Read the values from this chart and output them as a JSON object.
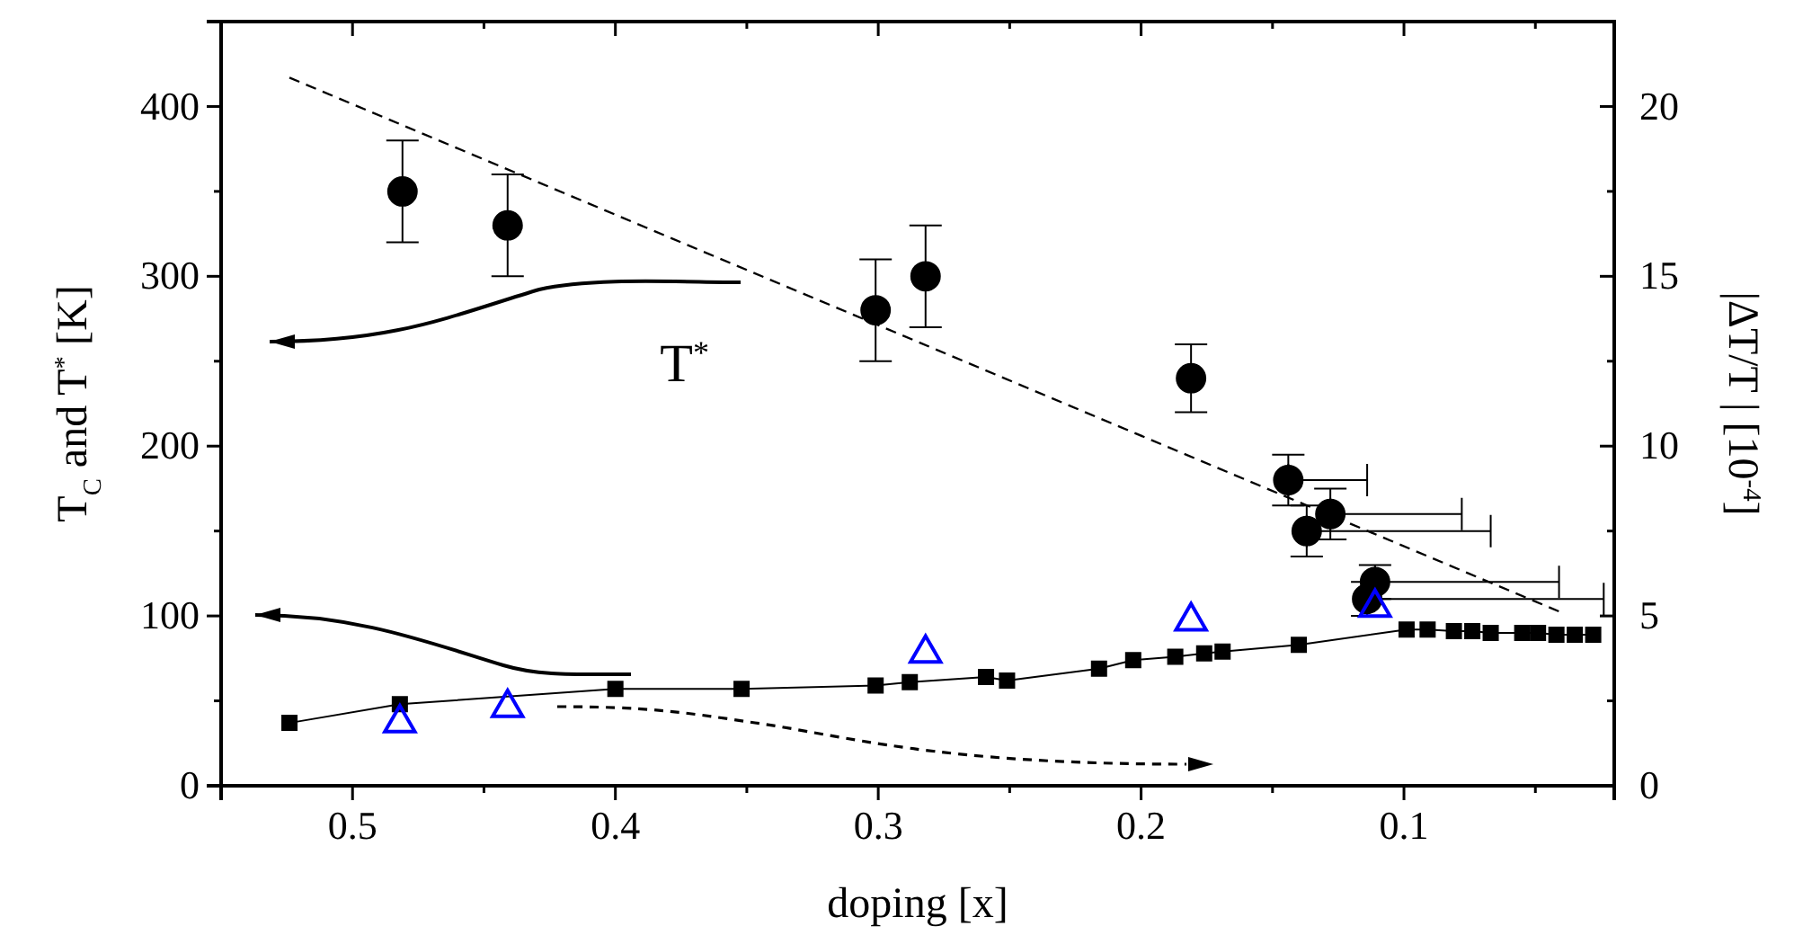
{
  "chart_data": {
    "type": "scatter",
    "xlabel": "doping [x]",
    "ylabel": "T$_{C}$ and T$^{*}$ [K]",
    "y2label": "|ΔT/T | [10$^{-4}$]",
    "xlim": [
      0.55,
      0.02
    ],
    "xticks": [
      0.5,
      {
        "value": 0.45,
        "label": null
      },
      0.4,
      {
        "value": 0.35,
        "label": null
      },
      0.3,
      {
        "value": 0.25,
        "label": null
      },
      0.2,
      {
        "value": 0.15,
        "label": null
      },
      0.1,
      {
        "value": 0.05,
        "label": null
      }
    ],
    "ylim": [
      0,
      450
    ],
    "yticks": [
      0,
      {
        "value": 50,
        "label": null
      },
      100,
      {
        "value": 150,
        "label": null
      },
      200,
      {
        "value": 250,
        "label": null
      },
      300,
      {
        "value": 350,
        "label": null
      },
      400
    ],
    "y2lim": [
      0,
      22.5
    ],
    "y2ticks": [
      0,
      {
        "value": 2.5,
        "label": null
      },
      5,
      {
        "value": 7.5,
        "label": null
      },
      10,
      {
        "value": 12.5,
        "label": null
      },
      15,
      {
        "value": 17.5,
        "label": null
      },
      20
    ],
    "grid": false,
    "annotations": [
      "T$^{*}$"
    ],
    "series": [
      {
        "type": "line",
        "color": "#000000",
        "marker": "square",
        "line_style": "solid",
        "x": [
          0.524,
          0.482,
          0.4,
          0.352,
          0.301,
          0.288,
          0.259,
          0.251,
          0.216,
          0.203,
          0.187,
          0.176,
          0.169,
          0.14,
          0.099,
          0.091,
          0.081,
          0.074,
          0.067,
          0.055,
          0.049,
          0.042,
          0.035,
          0.028
        ],
        "values": [
          37,
          48,
          57,
          57,
          59,
          61,
          64,
          62,
          69,
          74,
          76,
          78,
          79,
          83,
          92,
          92,
          91,
          91,
          90,
          90,
          90,
          89,
          89,
          89
        ]
      },
      {
        "color": "#000000",
        "marker": "circle",
        "x": [
          0.481,
          0.441,
          0.301,
          0.282,
          0.181,
          0.144,
          0.137,
          0.128,
          0.111,
          0.114
        ],
        "values": [
          350,
          330,
          280,
          300,
          240,
          180,
          150,
          160,
          120,
          110
        ],
        "errors": [
          30,
          30,
          30,
          30,
          20,
          15,
          15,
          15,
          10,
          10
        ],
        "xerrors": [
          null,
          null,
          null,
          null,
          null,
          [
            0.114,
            0.144
          ],
          [
            0.067,
            0.137
          ],
          [
            0.078,
            0.128
          ],
          [
            0.041,
            0.111
          ],
          [
            0.024,
            0.114
          ]
        ]
      },
      {
        "color": "#0000ff",
        "marker": "triangle",
        "axis": "y2",
        "x": [
          0.482,
          0.441,
          0.282,
          0.181,
          0.111
        ],
        "values": [
          1.85,
          2.3,
          3.9,
          4.85,
          5.25
        ]
      },
      {
        "type": "line",
        "color": "#000000",
        "marker": "none",
        "line_style": "dashed",
        "x": [
          0.524,
          0.04
        ],
        "values": [
          417,
          102
        ]
      }
    ]
  }
}
